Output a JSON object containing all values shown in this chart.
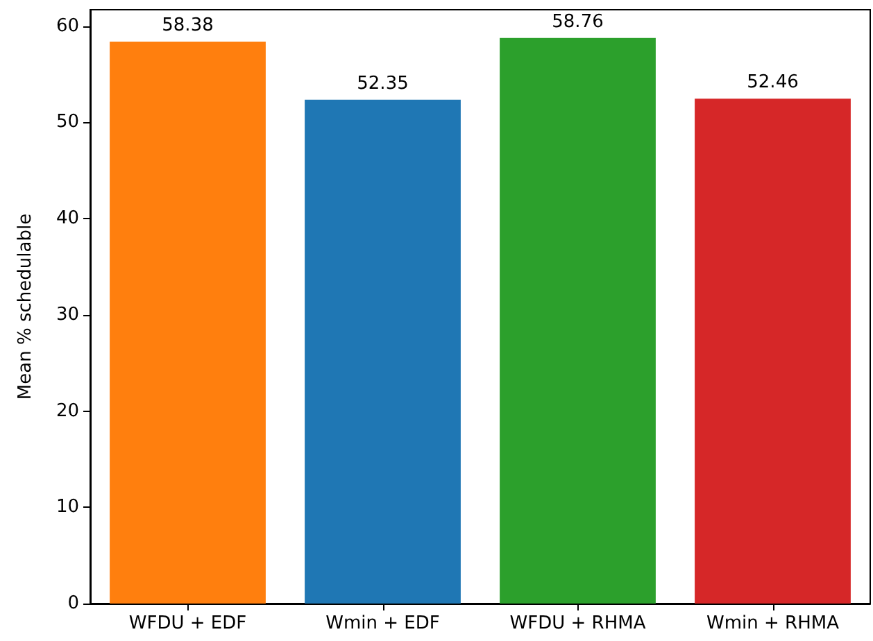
{
  "chart_data": {
    "type": "bar",
    "ylabel": "Mean % schedulable",
    "categories": [
      "WFDU + EDF",
      "Wmin + EDF",
      "WFDU + RHMA",
      "Wmin + RHMA"
    ],
    "values": [
      58.38,
      52.35,
      58.76,
      52.46
    ],
    "colors": [
      "#ff7f0e",
      "#1f77b4",
      "#2ca02c",
      "#d62728"
    ],
    "ylim": [
      0,
      61.7
    ],
    "yticks": [
      0,
      10,
      20,
      30,
      40,
      50,
      60
    ],
    "data_labels": true
  }
}
